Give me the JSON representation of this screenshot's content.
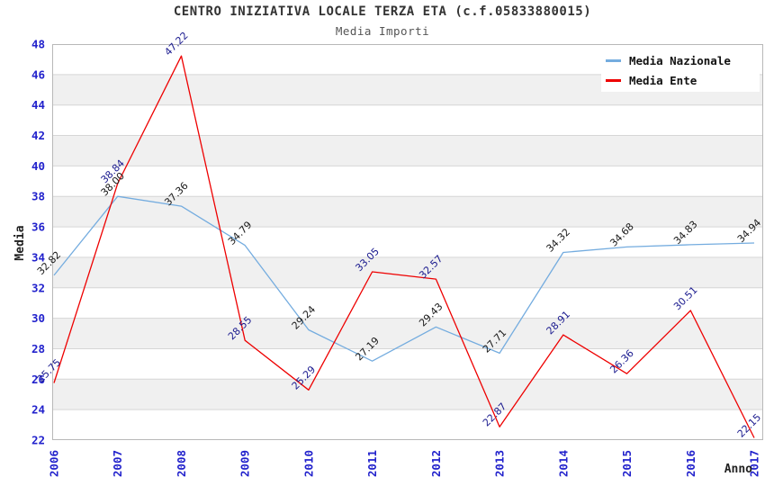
{
  "header": {
    "title": "CENTRO INIZIATIVA LOCALE TERZA ETA (c.f.05833880015)",
    "subtitle": "Media Importi"
  },
  "chart_data": {
    "type": "line",
    "title": "CENTRO INIZIATIVA LOCALE TERZA ETA (c.f.05833880015)",
    "subtitle": "Media Importi",
    "xlabel": "Anno",
    "ylabel": "Media",
    "x": [
      "2006",
      "2007",
      "2008",
      "2009",
      "2010",
      "2011",
      "2012",
      "2013",
      "2014",
      "2015",
      "2016",
      "2017"
    ],
    "series": [
      {
        "name": "Media Nazionale",
        "color": "#74ACDF",
        "label_color": "#1a1a1a",
        "values": [
          32.82,
          38.0,
          37.36,
          34.79,
          29.24,
          27.19,
          29.43,
          27.71,
          34.32,
          34.68,
          34.83,
          34.94
        ]
      },
      {
        "name": "Media Ente",
        "color": "#EE0000",
        "label_color": "#1b1b8f",
        "values": [
          25.75,
          38.84,
          47.22,
          28.55,
          25.29,
          33.05,
          32.57,
          22.87,
          28.91,
          26.36,
          30.51,
          22.15
        ]
      }
    ],
    "ylim": [
      22,
      48
    ],
    "ytick_step": 2,
    "grid": true,
    "band_colors": [
      "#FFFFFF",
      "#F0F0F0"
    ],
    "gridline_color": "#D6D6D6",
    "border_color": "#B8B8B8",
    "axis_tick_color": "#2222CC",
    "legend_position": "top-right",
    "value_labels_decimals": 2
  }
}
